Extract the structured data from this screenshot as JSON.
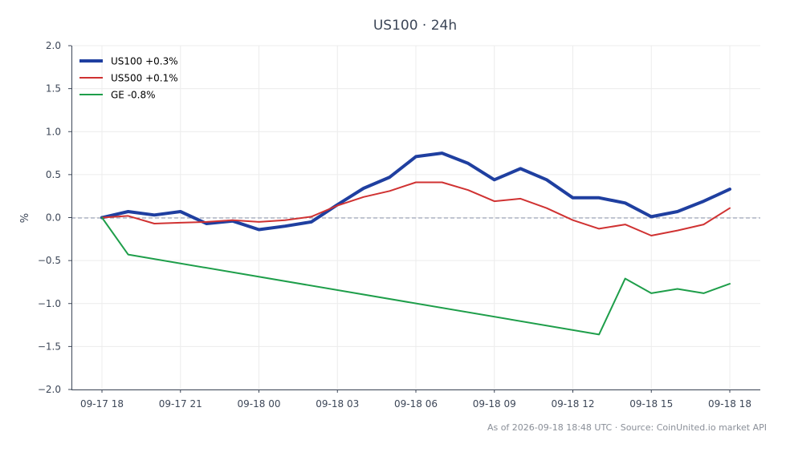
{
  "chart_data": {
    "type": "line",
    "title": "US100 · 24h",
    "xlabel": "",
    "ylabel": "%",
    "x_ticks": [
      "09-17 18",
      "09-17 21",
      "09-18 00",
      "09-18 03",
      "09-18 06",
      "09-18 09",
      "09-18 12",
      "09-18 15",
      "09-18 18"
    ],
    "y_ticks": [
      "2.0",
      "1.5",
      "1.0",
      "0.5",
      "0.0",
      "−0.5",
      "−1.0",
      "−1.5",
      "−2.0"
    ],
    "ylim": [
      -2.0,
      2.0
    ],
    "xlim": [
      "09-17 16:50",
      "09-18 19:10"
    ],
    "grid": true,
    "legend_position": "top-left",
    "reference_line": 0,
    "series": [
      {
        "name": "US100 +0.3%",
        "color": "#1f3fa0",
        "points": [
          [
            "09-17 18:00",
            0.0
          ],
          [
            "09-17 19:00",
            0.07
          ],
          [
            "09-17 20:00",
            0.03
          ],
          [
            "09-17 21:00",
            0.07
          ],
          [
            "09-17 22:00",
            -0.07
          ],
          [
            "09-17 23:00",
            -0.04
          ],
          [
            "09-18 00:00",
            -0.14
          ],
          [
            "09-18 01:00",
            -0.1
          ],
          [
            "09-18 02:00",
            -0.05
          ],
          [
            "09-18 03:00",
            0.15
          ],
          [
            "09-18 04:00",
            0.34
          ],
          [
            "09-18 05:00",
            0.47
          ],
          [
            "09-18 06:00",
            0.71
          ],
          [
            "09-18 07:00",
            0.75
          ],
          [
            "09-18 08:00",
            0.63
          ],
          [
            "09-18 09:00",
            0.44
          ],
          [
            "09-18 10:00",
            0.57
          ],
          [
            "09-18 11:00",
            0.44
          ],
          [
            "09-18 12:00",
            0.23
          ],
          [
            "09-18 13:00",
            0.23
          ],
          [
            "09-18 14:00",
            0.17
          ],
          [
            "09-18 15:00",
            0.01
          ],
          [
            "09-18 16:00",
            0.07
          ],
          [
            "09-18 17:00",
            0.19
          ],
          [
            "09-18 18:00",
            0.33
          ]
        ]
      },
      {
        "name": "US500 +0.1%",
        "color": "#d03232",
        "points": [
          [
            "09-17 18:00",
            0.0
          ],
          [
            "09-17 19:00",
            0.02
          ],
          [
            "09-17 20:00",
            -0.07
          ],
          [
            "09-17 21:00",
            -0.06
          ],
          [
            "09-17 22:00",
            -0.05
          ],
          [
            "09-17 23:00",
            -0.03
          ],
          [
            "09-18 00:00",
            -0.05
          ],
          [
            "09-18 01:00",
            -0.03
          ],
          [
            "09-18 02:00",
            0.01
          ],
          [
            "09-18 03:00",
            0.14
          ],
          [
            "09-18 04:00",
            0.24
          ],
          [
            "09-18 05:00",
            0.31
          ],
          [
            "09-18 06:00",
            0.41
          ],
          [
            "09-18 07:00",
            0.41
          ],
          [
            "09-18 08:00",
            0.32
          ],
          [
            "09-18 09:00",
            0.19
          ],
          [
            "09-18 10:00",
            0.22
          ],
          [
            "09-18 11:00",
            0.11
          ],
          [
            "09-18 12:00",
            -0.03
          ],
          [
            "09-18 13:00",
            -0.13
          ],
          [
            "09-18 14:00",
            -0.08
          ],
          [
            "09-18 15:00",
            -0.21
          ],
          [
            "09-18 16:00",
            -0.15
          ],
          [
            "09-18 17:00",
            -0.08
          ],
          [
            "09-18 18:00",
            0.11
          ]
        ]
      },
      {
        "name": "GE -0.8%",
        "color": "#1e9e4a",
        "points": [
          [
            "09-17 18:00",
            0.0
          ],
          [
            "09-17 19:00",
            -0.43
          ],
          [
            "09-18 13:00",
            -1.36
          ],
          [
            "09-18 14:00",
            -0.71
          ],
          [
            "09-18 15:00",
            -0.88
          ],
          [
            "09-18 16:00",
            -0.83
          ],
          [
            "09-18 17:00",
            -0.88
          ],
          [
            "09-18 18:00",
            -0.77
          ]
        ]
      }
    ]
  },
  "footnote": "As of 2026-09-18 18:48 UTC · Source: CoinUnited.io market API"
}
